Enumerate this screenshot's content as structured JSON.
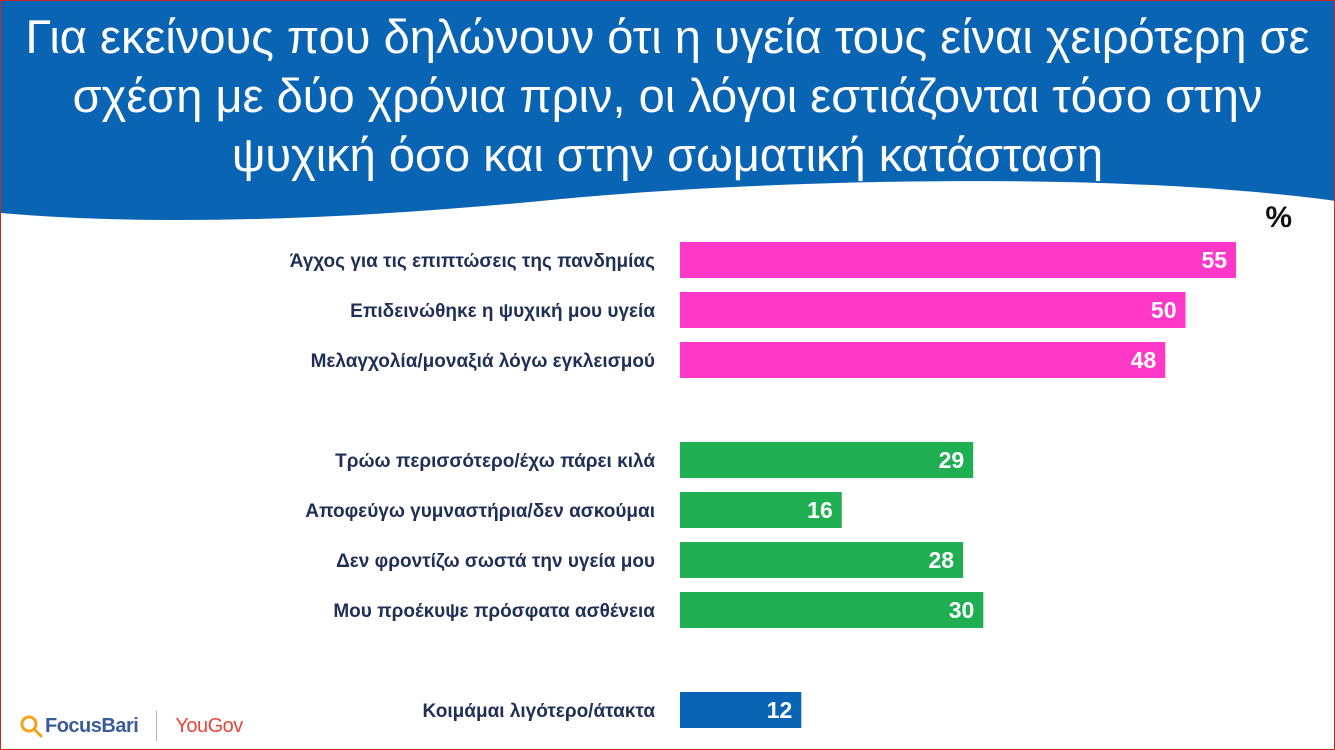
{
  "title": "Για εκείνους που δηλώνουν ότι η υγεία τους είναι χειρότερη σε σχέση με δύο χρόνια πριν, οι λόγοι εστιάζονται τόσο στην ψυχική όσο και στην σωματική κατάσταση",
  "unit_label": "%",
  "colors": {
    "header": "#0a64b4",
    "mental": "#ff38c8",
    "physical": "#1fae52",
    "sleep": "#0a64b4"
  },
  "logos": {
    "focus": "FocusBari",
    "yougov": "YouGov"
  },
  "chart_data": {
    "type": "bar",
    "orientation": "horizontal",
    "xlim": [
      0,
      100
    ],
    "categories": [
      "Άγχος για τις επιπτώσεις της πανδημίας",
      "Επιδεινώθηκε η ψυχική μου υγεία",
      "Μελαγχολία/μοναξιά λόγω εγκλεισμού",
      "Τρώω περισσότερο/έχω πάρει κιλά",
      "Αποφεύγω γυμναστήρια/δεν ασκούμαι",
      "Δεν φροντίζω σωστά την υγεία μου",
      "Μου προέκυψε πρόσφατα ασθένεια",
      "Κοιμάμαι λιγότερο/άτακτα"
    ],
    "values": [
      55,
      50,
      48,
      29,
      16,
      28,
      30,
      12
    ],
    "groups": [
      "mental",
      "mental",
      "mental",
      "physical",
      "physical",
      "physical",
      "physical",
      "sleep"
    ]
  }
}
